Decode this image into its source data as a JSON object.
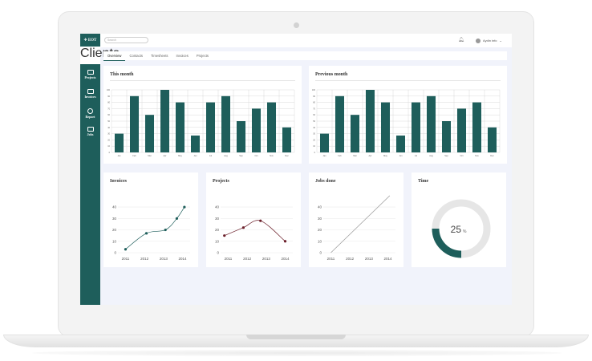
{
  "app": {
    "logo": "EOT"
  },
  "search": {
    "placeholder": "Search"
  },
  "user": {
    "name": "Aydin info"
  },
  "sidebar": {
    "items": [
      {
        "label": "Clients",
        "icon": "user-icon",
        "active": true
      },
      {
        "label": "Projects",
        "icon": "folder-icon"
      },
      {
        "label": "Invoices",
        "icon": "invoice-icon"
      },
      {
        "label": "Report",
        "icon": "pie-chart-icon"
      },
      {
        "label": "Jobs",
        "icon": "briefcase-icon"
      }
    ]
  },
  "tabs": [
    "Overview",
    "Contacts",
    "Timesheets",
    "Invoices",
    "Projects"
  ],
  "cards": {
    "this_month": {
      "title": "This month"
    },
    "previous_month": {
      "title": "Previous month"
    },
    "invoices": {
      "title": "Invoices"
    },
    "projects": {
      "title": "Projects"
    },
    "jobs_done": {
      "title": "Jobs done"
    },
    "time": {
      "title": "Time",
      "value": "25",
      "unit": "%"
    }
  },
  "chart_data": [
    {
      "type": "bar",
      "title": "This month",
      "categories": [
        "Jan",
        "Feb",
        "Mar",
        "Apr",
        "May",
        "Jun",
        "Jul",
        "Aug",
        "Sep",
        "Oct",
        "Nov",
        "Dec"
      ],
      "values": [
        30,
        90,
        60,
        100,
        80,
        27,
        80,
        90,
        50,
        70,
        80,
        40
      ],
      "ylim": [
        0,
        100
      ],
      "color": "#1e5e5b"
    },
    {
      "type": "bar",
      "title": "Previous month",
      "categories": [
        "Jan",
        "Feb",
        "Mar",
        "Apr",
        "May",
        "Jun",
        "Jul",
        "Aug",
        "Sep",
        "Oct",
        "Nov",
        "Dec"
      ],
      "values": [
        30,
        90,
        60,
        100,
        80,
        27,
        80,
        90,
        50,
        70,
        80,
        40
      ],
      "ylim": [
        0,
        100
      ],
      "color": "#1e5e5b"
    },
    {
      "type": "line",
      "title": "Invoices",
      "x": [
        2011,
        2012,
        2013,
        2014
      ],
      "series": [
        {
          "values": [
            3,
            17,
            20,
            30,
            40
          ],
          "x": [
            2011,
            2012.1,
            2013.1,
            2013.7,
            2014.1
          ]
        }
      ],
      "yticks": [
        0,
        10,
        20,
        30,
        40
      ],
      "color": "#1e5e5b"
    },
    {
      "type": "line",
      "title": "Projects",
      "x": [
        2011,
        2012,
        2013,
        2014
      ],
      "series": [
        {
          "values": [
            15,
            22,
            28,
            10
          ],
          "x": [
            2010.8,
            2011.8,
            2012.7,
            2014
          ]
        }
      ],
      "yticks": [
        0,
        10,
        20,
        30,
        40
      ],
      "color": "#6b1f2a"
    },
    {
      "type": "line",
      "title": "Jobs done",
      "x": [
        2011,
        2012,
        2013,
        2014
      ],
      "series": [
        {
          "values": [
            0,
            50
          ],
          "x": [
            2011,
            2014.1
          ]
        }
      ],
      "yticks": [
        0,
        10,
        20,
        30,
        40
      ],
      "color": "#999999"
    },
    {
      "type": "pie",
      "title": "Time",
      "values": [
        25,
        75
      ],
      "colors": [
        "#1e5e5b",
        "#e6e6e6"
      ]
    }
  ]
}
